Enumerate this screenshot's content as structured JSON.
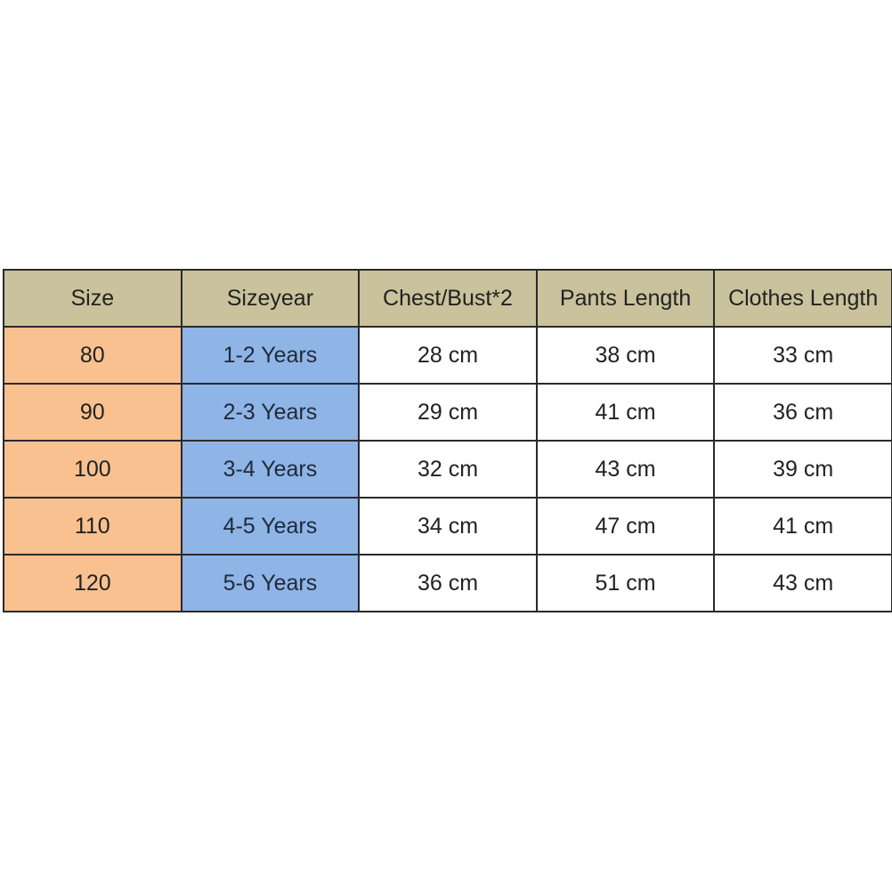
{
  "colors": {
    "header": "#c9c29c",
    "size_column": "#f9c190",
    "year_column": "#8fb4e6"
  },
  "table": {
    "headers": [
      "Size",
      "Sizeyear",
      "Chest/Bust*2",
      "Pants Length",
      "Clothes Length"
    ],
    "rows": [
      [
        "80",
        "1-2 Years",
        "28 cm",
        "38 cm",
        "33 cm"
      ],
      [
        "90",
        "2-3  Years",
        "29 cm",
        "41 cm",
        "36 cm"
      ],
      [
        "100",
        "3-4 Years",
        "32 cm",
        "43 cm",
        "39 cm"
      ],
      [
        "110",
        "4-5 Years",
        "34 cm",
        "47 cm",
        "41 cm"
      ],
      [
        "120",
        "5-6 Years",
        "36 cm",
        "51 cm",
        "43 cm"
      ]
    ]
  }
}
